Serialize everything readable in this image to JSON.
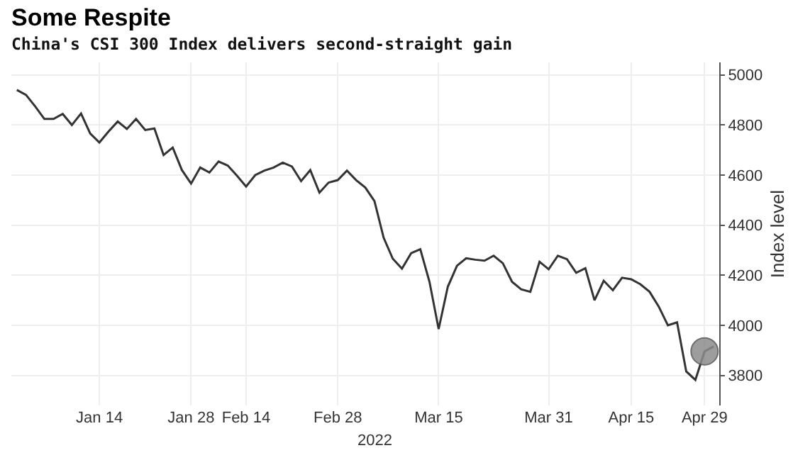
{
  "chart_data": {
    "type": "line",
    "title": "Some Respite",
    "subtitle": "China's CSI 300 Index delivers second-straight gain",
    "ylabel": "Index level",
    "categories": [
      null,
      null,
      null,
      null,
      null,
      null,
      null,
      null,
      null,
      "Jan 14",
      null,
      null,
      null,
      null,
      null,
      null,
      null,
      null,
      null,
      "Jan 28",
      null,
      null,
      null,
      null,
      null,
      "Feb 14",
      null,
      null,
      null,
      null,
      null,
      null,
      null,
      null,
      null,
      "Feb 28",
      null,
      null,
      null,
      null,
      null,
      null,
      null,
      null,
      null,
      null,
      "Mar 15",
      null,
      null,
      null,
      null,
      null,
      null,
      null,
      null,
      null,
      null,
      null,
      "Mar 31",
      null,
      null,
      null,
      null,
      null,
      null,
      null,
      null,
      "Apr 15",
      null,
      null,
      null,
      null,
      null,
      null,
      null,
      "Apr 29",
      null
    ],
    "series": [
      {
        "color": "#333333",
        "values": [
          4940,
          4920,
          4874,
          4824,
          4824,
          4844,
          4800,
          4846,
          4766,
          4730,
          4774,
          4814,
          4784,
          4824,
          4780,
          4786,
          4680,
          4710,
          4620,
          4566,
          4630,
          4610,
          4654,
          4638,
          4598,
          4554,
          4600,
          4618,
          4630,
          4650,
          4634,
          4576,
          4620,
          4530,
          4570,
          4580,
          4618,
          4580,
          4550,
          4496,
          4350,
          4266,
          4226,
          4288,
          4304,
          4174,
          3985,
          4154,
          4238,
          4268,
          4262,
          4258,
          4278,
          4248,
          4174,
          4144,
          4134,
          4254,
          4224,
          4278,
          4264,
          4210,
          4228,
          4100,
          4178,
          4140,
          4190,
          4184,
          4164,
          4134,
          4075,
          4000,
          4012,
          3816,
          3782,
          3896,
          3916
        ]
      },
      {
        "type": "scatter",
        "color": "#8c8c8c",
        "marker": "circle",
        "values": [
          null,
          null,
          null,
          null,
          null,
          null,
          null,
          null,
          null,
          null,
          null,
          null,
          null,
          null,
          null,
          null,
          null,
          null,
          null,
          null,
          null,
          null,
          null,
          null,
          null,
          null,
          null,
          null,
          null,
          null,
          null,
          null,
          null,
          null,
          null,
          null,
          null,
          null,
          null,
          null,
          null,
          null,
          null,
          null,
          null,
          null,
          null,
          null,
          null,
          null,
          null,
          null,
          null,
          null,
          null,
          null,
          null,
          null,
          null,
          null,
          null,
          null,
          null,
          null,
          null,
          null,
          null,
          null,
          null,
          null,
          null,
          null,
          null,
          null,
          null,
          3896,
          null
        ]
      }
    ],
    "ylim": [
      3680,
      5050
    ],
    "yticks": [
      3800,
      4000,
      4200,
      4400,
      4600,
      4800,
      5000
    ],
    "annotations": [
      "2022"
    ],
    "grid": true
  }
}
